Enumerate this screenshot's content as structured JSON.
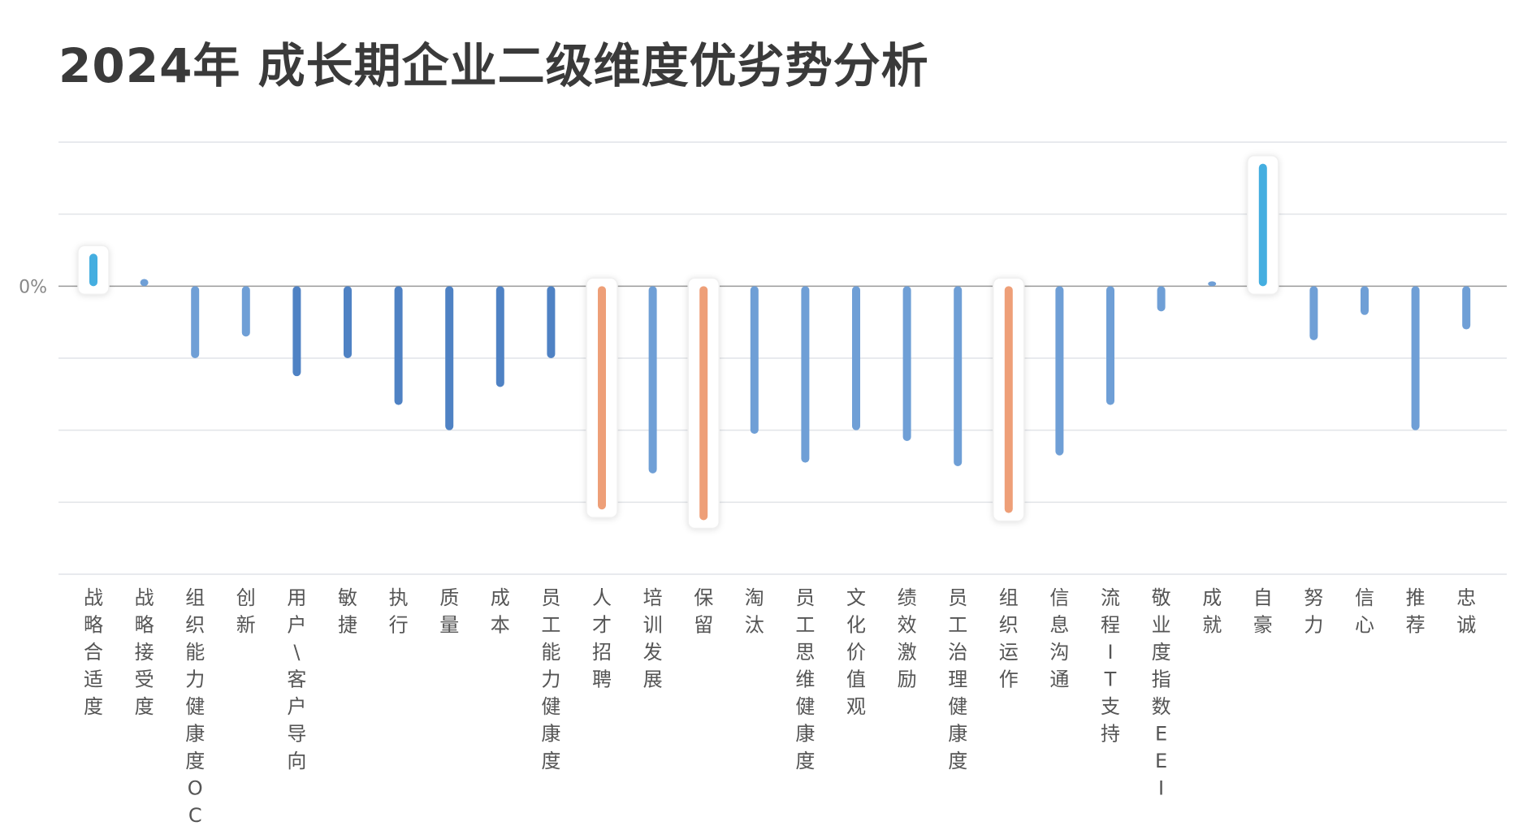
{
  "title": "2024年 成长期企业二级维度优劣势分析",
  "chart_data": {
    "type": "bar",
    "title": "2024年 成长期企业二级维度优劣势分析",
    "xlabel": "",
    "ylabel": "",
    "y_tick_label": "0%",
    "grid": true,
    "categories": [
      "战略合适度",
      "战略接受度",
      "组织能力健康度OCI",
      "创新",
      "用户\\客户导向",
      "敏捷",
      "执行",
      "质量",
      "成本",
      "员工能力健康度",
      "人才招聘",
      "培训发展",
      "保留",
      "淘汰",
      "员工思维健康度",
      "文化价值观",
      "绩效激励",
      "员工治理健康度",
      "组织运作",
      "信息沟通",
      "流程IT支持",
      "敬业度指数EEI",
      "成就",
      "自豪",
      "努力",
      "信心",
      "推荐",
      "忠诚"
    ],
    "values": [
      4.5,
      1.0,
      -10.0,
      -7.0,
      -12.5,
      -10.0,
      -16.5,
      -20.0,
      -14.0,
      -10.0,
      -31.0,
      -26.0,
      -32.5,
      -20.5,
      -24.5,
      -20.0,
      -21.5,
      -25.0,
      -31.5,
      -23.5,
      -16.5,
      -3.5,
      0.5,
      17.0,
      -7.5,
      -4.0,
      -20.0,
      -6.0
    ],
    "highlight": [
      "best",
      "none",
      "none",
      "none",
      "none",
      "none",
      "none",
      "none",
      "none",
      "none",
      "worst",
      "none",
      "worst",
      "none",
      "none",
      "none",
      "none",
      "none",
      "worst",
      "none",
      "none",
      "none",
      "none",
      "best",
      "none",
      "none",
      "none",
      "none"
    ],
    "ylim": [
      -40,
      20
    ],
    "colors": {
      "best": "#44aee0",
      "worst": "#ee9f78",
      "default": "#6f9fd6",
      "dark": "#4f82c4",
      "grid": "#e1e4e8",
      "axis": "#9a9a9a"
    }
  }
}
